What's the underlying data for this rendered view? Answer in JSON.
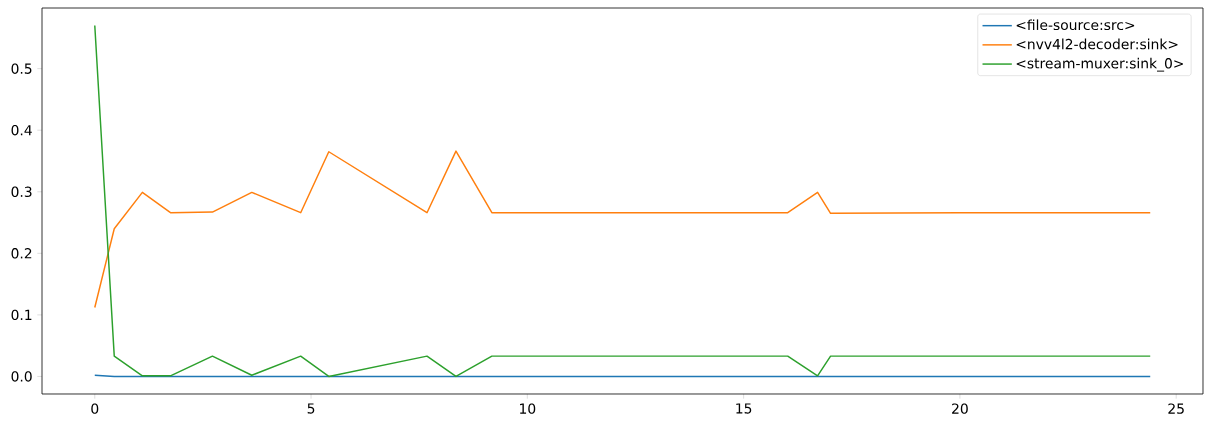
{
  "chart_data": {
    "type": "line",
    "legend": "top right",
    "grid": false,
    "x": [
      0,
      0.45,
      1.1,
      1.75,
      2.72,
      3.63,
      4.76,
      5.41,
      7.68,
      8.35,
      9.18,
      10.5,
      12,
      14,
      16.02,
      16.71,
      17.01,
      20,
      22,
      24.4
    ],
    "xlim": [
      -1.22,
      25.62
    ],
    "xticks": [
      0,
      5,
      10,
      15,
      20,
      25
    ],
    "ylim": [
      -0.0285,
      0.5985
    ],
    "yticks": [
      {
        "value": 0,
        "label": "0.0"
      },
      0.1,
      0.2,
      0.3,
      0.4,
      0.5
    ],
    "series": [
      {
        "name": "<file-source:src>",
        "color": "#1f77b4",
        "values": [
          0.002,
          0,
          0,
          0,
          0,
          0,
          0,
          0,
          0,
          0,
          0,
          0,
          0,
          0,
          0,
          0,
          0,
          0,
          0,
          0
        ]
      },
      {
        "name": "<nvv4l2-decoder:sink>",
        "color": "#ff7f0e",
        "values": [
          0.112,
          0.24,
          0.299,
          0.266,
          0.267,
          0.299,
          0.266,
          0.365,
          0.266,
          0.366,
          0.266,
          0.266,
          0.266,
          0.266,
          0.266,
          0.299,
          0.265,
          0.266,
          0.266,
          0.266
        ]
      },
      {
        "name": "<stream-muxer:sink_0>",
        "color": "#2ca02c",
        "values": [
          0.57,
          0.033,
          0.001,
          0.001,
          0.033,
          0.002,
          0.033,
          0,
          0.033,
          0,
          0.033,
          0.033,
          0.033,
          0.033,
          0.033,
          0.001,
          0.033,
          0.033,
          0.033,
          0.033
        ]
      }
    ]
  }
}
